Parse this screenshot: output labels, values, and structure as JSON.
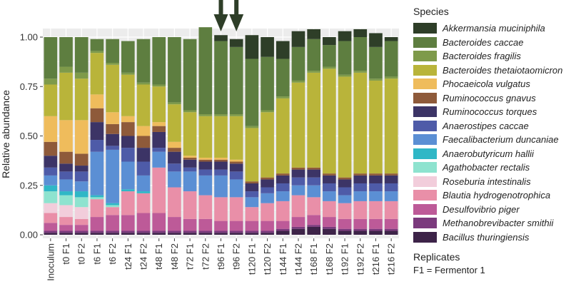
{
  "chart_data": {
    "type": "bar",
    "stacked": true,
    "ylabel": "Relative abundance",
    "xlabel": "",
    "ylim": [
      0,
      1
    ],
    "yticks": [
      0,
      0.25,
      0.5,
      0.75,
      1
    ],
    "ytick_labels": [
      "0.00",
      "0.25",
      "0.50",
      "0.75",
      "1.00"
    ],
    "categories": [
      "Inoculum",
      "t0 F1",
      "t0 F2",
      "t6 F1",
      "t6 F2",
      "t24 F1",
      "t24 F2",
      "t48 F1",
      "t48 F2",
      "t72 F1",
      "t72 F2",
      "t96 F1",
      "t96 F2",
      "t120 F1",
      "t120 F2",
      "t144 F1",
      "t144 F2",
      "t168 F1",
      "t168 F2",
      "t192 F1",
      "t192 F2",
      "t216 F1",
      "t216 F2"
    ],
    "highlighted_categories": [
      "t96 F1",
      "t96 F2"
    ],
    "series_stack_order": "bottom-to-top follows the reverse of the legend order",
    "series": [
      {
        "name": "Bacillus thuringiensis",
        "color": "#3d2348",
        "values": [
          0.01,
          0.01,
          0.01,
          0.01,
          0.01,
          0.01,
          0.01,
          0.01,
          0.01,
          0.01,
          0.01,
          0.01,
          0.01,
          0.01,
          0.01,
          0.02,
          0.03,
          0.04,
          0.03,
          0.02,
          0.02,
          0.02,
          0.02
        ]
      },
      {
        "name": "Methanobrevibacter smithii",
        "color": "#7b3a7d",
        "values": [
          0.01,
          0.01,
          0.01,
          0.01,
          0.01,
          0.01,
          0.01,
          0.01,
          0.01,
          0.01,
          0.01,
          0.01,
          0.01,
          0.01,
          0.01,
          0.01,
          0.01,
          0.01,
          0.01,
          0.01,
          0.01,
          0.01,
          0.01
        ]
      },
      {
        "name": "Desulfovibrio piger",
        "color": "#bd5a98",
        "values": [
          0.04,
          0.03,
          0.03,
          0.07,
          0.08,
          0.08,
          0.09,
          0.09,
          0.07,
          0.06,
          0.06,
          0.05,
          0.05,
          0.05,
          0.05,
          0.04,
          0.05,
          0.05,
          0.05,
          0.05,
          0.05,
          0.05,
          0.05
        ]
      },
      {
        "name": "Blautia hydrogenotrophica",
        "color": "#e98fa8",
        "values": [
          0.05,
          0.04,
          0.03,
          0.09,
          0.04,
          0.12,
          0.1,
          0.23,
          0.15,
          0.14,
          0.12,
          0.12,
          0.12,
          0.07,
          0.09,
          0.1,
          0.11,
          0.09,
          0.08,
          0.08,
          0.09,
          0.09,
          0.09
        ]
      },
      {
        "name": "Roseburia intestinalis",
        "color": "#f2cddb",
        "values": [
          0.05,
          0.06,
          0.06,
          0.0,
          0.0,
          0.0,
          0.0,
          0.0,
          0.0,
          0.0,
          0.0,
          0.0,
          0.0,
          0.0,
          0.0,
          0.0,
          0.0,
          0.0,
          0.0,
          0.0,
          0.0,
          0.0,
          0.0
        ]
      },
      {
        "name": "Agathobacter rectalis",
        "color": "#8ee3cf",
        "values": [
          0.06,
          0.05,
          0.05,
          0.01,
          0.01,
          0.0,
          0.0,
          0.0,
          0.0,
          0.0,
          0.0,
          0.0,
          0.0,
          0.0,
          0.0,
          0.0,
          0.0,
          0.0,
          0.0,
          0.0,
          0.0,
          0.0,
          0.0
        ]
      },
      {
        "name": "Anaerobutyricum hallii",
        "color": "#2fb7c6",
        "values": [
          0.03,
          0.02,
          0.03,
          0.01,
          0.01,
          0.01,
          0.01,
          0.0,
          0.0,
          0.0,
          0.0,
          0.0,
          0.0,
          0.0,
          0.0,
          0.0,
          0.0,
          0.0,
          0.0,
          0.0,
          0.0,
          0.0,
          0.0
        ]
      },
      {
        "name": "Faecalibacterium duncaniae",
        "color": "#5b8fd4",
        "values": [
          0.05,
          0.06,
          0.05,
          0.22,
          0.27,
          0.14,
          0.08,
          0.08,
          0.08,
          0.1,
          0.1,
          0.11,
          0.09,
          0.05,
          0.05,
          0.05,
          0.05,
          0.06,
          0.05,
          0.04,
          0.05,
          0.05,
          0.05
        ]
      },
      {
        "name": "Anaerostipes caccae",
        "color": "#4e5ba8",
        "values": [
          0.04,
          0.04,
          0.05,
          0.06,
          0.02,
          0.07,
          0.07,
          0.02,
          0.04,
          0.02,
          0.03,
          0.03,
          0.04,
          0.03,
          0.03,
          0.04,
          0.04,
          0.04,
          0.04,
          0.04,
          0.04,
          0.04,
          0.04
        ]
      },
      {
        "name": "Ruminococcus torques",
        "color": "#3c3466",
        "values": [
          0.06,
          0.04,
          0.03,
          0.09,
          0.06,
          0.06,
          0.07,
          0.08,
          0.06,
          0.04,
          0.04,
          0.04,
          0.04,
          0.04,
          0.04,
          0.04,
          0.04,
          0.04,
          0.04,
          0.04,
          0.04,
          0.04,
          0.04
        ]
      },
      {
        "name": "Ruminococcus gnavus",
        "color": "#8e5a3a",
        "values": [
          0.07,
          0.06,
          0.06,
          0.07,
          0.05,
          0.07,
          0.06,
          0.03,
          0.02,
          0.01,
          0.01,
          0.01,
          0.01,
          0.01,
          0.01,
          0.01,
          0.01,
          0.01,
          0.01,
          0.01,
          0.01,
          0.01,
          0.01
        ]
      },
      {
        "name": "Phocaeicola vulgatus",
        "color": "#efbc5c",
        "values": [
          0.13,
          0.16,
          0.17,
          0.07,
          0.06,
          0.03,
          0.05,
          0.02,
          0.03,
          0.01,
          0.01,
          0.01,
          0.01,
          0.0,
          0.0,
          0.0,
          0.0,
          0.0,
          0.0,
          0.0,
          0.0,
          0.0,
          0.0
        ]
      },
      {
        "name": "Bacteroides thetaiotaomicron",
        "color": "#b9b43a",
        "values": [
          0.16,
          0.24,
          0.21,
          0.21,
          0.24,
          0.21,
          0.21,
          0.18,
          0.19,
          0.22,
          0.21,
          0.21,
          0.22,
          0.27,
          0.33,
          0.38,
          0.43,
          0.48,
          0.53,
          0.51,
          0.51,
          0.47,
          0.48
        ]
      },
      {
        "name": "Bacteroides fragilis",
        "color": "#7e9a4a",
        "values": [
          0.03,
          0.03,
          0.03,
          0.01,
          0.01,
          0.01,
          0.01,
          0.01,
          0.01,
          0.01,
          0.01,
          0.01,
          0.01,
          0.01,
          0.01,
          0.01,
          0.01,
          0.01,
          0.01,
          0.01,
          0.01,
          0.01,
          0.01
        ]
      },
      {
        "name": "Bacteroides caccae",
        "color": "#5e7e40",
        "values": [
          0.21,
          0.15,
          0.18,
          0.06,
          0.12,
          0.16,
          0.22,
          0.24,
          0.33,
          0.36,
          0.44,
          0.37,
          0.34,
          0.34,
          0.27,
          0.19,
          0.17,
          0.16,
          0.11,
          0.17,
          0.17,
          0.16,
          0.18
        ]
      },
      {
        "name": "Akkermansia muciniphila",
        "color": "#2e3e28",
        "values": [
          0,
          0,
          0,
          0,
          0,
          0,
          0,
          0,
          0,
          0,
          0,
          0.03,
          0.04,
          0.12,
          0.1,
          0.09,
          0.08,
          0.05,
          0.04,
          0.05,
          0.04,
          0.07,
          0.02
        ]
      }
    ]
  },
  "legend": {
    "title": "Species",
    "items": [
      {
        "label": "Akkermansia muciniphila",
        "color": "#2e3e28"
      },
      {
        "label": "Bacteroides caccae",
        "color": "#5e7e40"
      },
      {
        "label": "Bacteroides fragilis",
        "color": "#7e9a4a"
      },
      {
        "label": "Bacteroides thetaiotaomicron",
        "color": "#b9b43a"
      },
      {
        "label": "Phocaeicola vulgatus",
        "color": "#efbc5c"
      },
      {
        "label": "Ruminococcus gnavus",
        "color": "#8e5a3a"
      },
      {
        "label": "Ruminococcus torques",
        "color": "#3c3466"
      },
      {
        "label": "Anaerostipes caccae",
        "color": "#4e5ba8"
      },
      {
        "label": "Faecalibacterium duncaniae",
        "color": "#5b8fd4"
      },
      {
        "label": "Anaerobutyricum hallii",
        "color": "#2fb7c6"
      },
      {
        "label": "Agathobacter rectalis",
        "color": "#8ee3cf"
      },
      {
        "label": "Roseburia intestinalis",
        "color": "#f2cddb"
      },
      {
        "label": "Blautia hydrogenotrophica",
        "color": "#e98fa8"
      },
      {
        "label": "Desulfovibrio piger",
        "color": "#bd5a98"
      },
      {
        "label": "Methanobrevibacter smithii",
        "color": "#7b3a7d"
      },
      {
        "label": "Bacillus thuringiensis",
        "color": "#3d2348"
      }
    ]
  },
  "replicates": {
    "title": "Replicates",
    "note": "F1 = Fermentor 1"
  },
  "colors": {
    "panel_background": "#ececec",
    "arrow": "#2e3e28"
  }
}
